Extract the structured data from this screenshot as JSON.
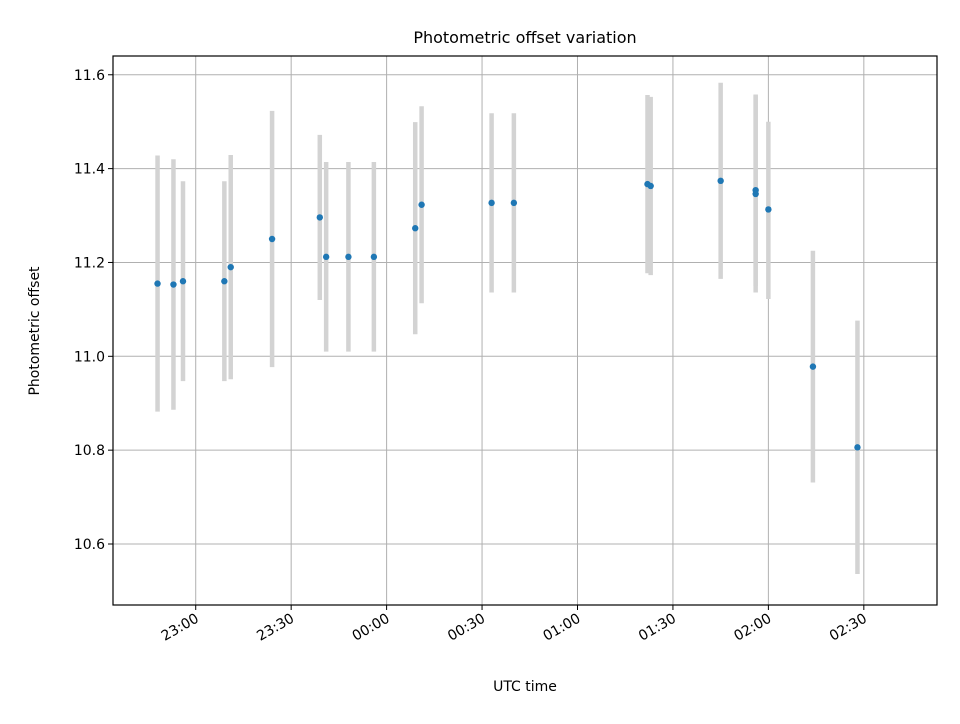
{
  "chart_data": {
    "type": "scatter",
    "title": "Photometric offset variation",
    "xlabel": "UTC time",
    "ylabel": "Photometric offset",
    "x_axis_kind": "time",
    "xlim": [
      "22:34",
      "02:53"
    ],
    "ylim": [
      10.47,
      11.64
    ],
    "x_ticks": [
      "23:00",
      "23:30",
      "00:00",
      "00:30",
      "01:00",
      "01:30",
      "02:00",
      "02:30"
    ],
    "y_ticks": [
      "10.6",
      "10.8",
      "11.0",
      "11.2",
      "11.4",
      "11.6"
    ],
    "grid": true,
    "colors": {
      "point": "#1f77b4",
      "errorbar": "#d3d3d3",
      "grid": "#b0b0b0"
    },
    "points": [
      {
        "x": "22:48",
        "y": 11.155,
        "ymin": 10.882,
        "ymax": 11.428
      },
      {
        "x": "22:53",
        "y": 11.153,
        "ymin": 10.886,
        "ymax": 11.42
      },
      {
        "x": "22:56",
        "y": 11.16,
        "ymin": 10.947,
        "ymax": 11.373
      },
      {
        "x": "23:09",
        "y": 11.16,
        "ymin": 10.947,
        "ymax": 11.373
      },
      {
        "x": "23:11",
        "y": 11.19,
        "ymin": 10.951,
        "ymax": 11.429
      },
      {
        "x": "23:24",
        "y": 11.25,
        "ymin": 10.977,
        "ymax": 11.523
      },
      {
        "x": "23:39",
        "y": 11.296,
        "ymin": 11.12,
        "ymax": 11.472
      },
      {
        "x": "23:41",
        "y": 11.212,
        "ymin": 11.01,
        "ymax": 11.414
      },
      {
        "x": "23:48",
        "y": 11.212,
        "ymin": 11.01,
        "ymax": 11.414
      },
      {
        "x": "23:56",
        "y": 11.212,
        "ymin": 11.01,
        "ymax": 11.414
      },
      {
        "x": "00:09",
        "y": 11.273,
        "ymin": 11.047,
        "ymax": 11.499
      },
      {
        "x": "00:11",
        "y": 11.323,
        "ymin": 11.113,
        "ymax": 11.533
      },
      {
        "x": "00:33",
        "y": 11.327,
        "ymin": 11.136,
        "ymax": 11.518
      },
      {
        "x": "00:40",
        "y": 11.327,
        "ymin": 11.136,
        "ymax": 11.518
      },
      {
        "x": "01:22",
        "y": 11.367,
        "ymin": 11.177,
        "ymax": 11.557
      },
      {
        "x": "01:23",
        "y": 11.363,
        "ymin": 11.173,
        "ymax": 11.553
      },
      {
        "x": "01:45",
        "y": 11.374,
        "ymin": 11.165,
        "ymax": 11.583
      },
      {
        "x": "01:56",
        "y": 11.346,
        "ymin": 11.136,
        "ymax": 11.556
      },
      {
        "x": "01:56",
        "y": 11.354,
        "ymin": 11.15,
        "ymax": 11.558
      },
      {
        "x": "02:00",
        "y": 11.313,
        "ymin": 11.122,
        "ymax": 11.5
      },
      {
        "x": "02:14",
        "y": 10.978,
        "ymin": 10.731,
        "ymax": 11.225
      },
      {
        "x": "02:28",
        "y": 10.806,
        "ymin": 10.536,
        "ymax": 11.076
      }
    ]
  }
}
